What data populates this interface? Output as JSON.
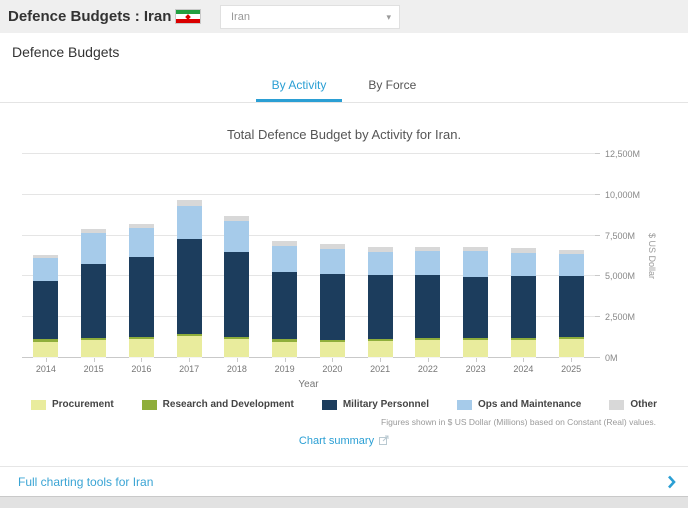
{
  "colors": {
    "accent": "#2b9fd4"
  },
  "header": {
    "title": "Defence Budgets : Iran",
    "country_select": {
      "value": "Iran",
      "caret": "▾"
    }
  },
  "panel": {
    "heading": "Defence Budgets",
    "tabs": [
      {
        "label": "By Activity",
        "active": true
      },
      {
        "label": "By Force",
        "active": false
      }
    ]
  },
  "chart_data": {
    "type": "bar",
    "stacked": true,
    "title": "Total Defence Budget by Activity for Iran.",
    "xlabel": "Year",
    "ylabel": "$ US Dollar",
    "ylim": [
      0,
      12500
    ],
    "yticks": [
      0,
      2500,
      5000,
      7500,
      10000,
      12500
    ],
    "ytick_labels": [
      "0M",
      "2,500M",
      "5,000M",
      "7,500M",
      "10,000M",
      "12,500M"
    ],
    "grid": true,
    "legend_position": "bottom",
    "categories": [
      "2014",
      "2015",
      "2016",
      "2017",
      "2018",
      "2019",
      "2020",
      "2021",
      "2022",
      "2023",
      "2024",
      "2025"
    ],
    "series": [
      {
        "name": "Procurement",
        "color": "#e9ec9d",
        "values": [
          950,
          1020,
          1080,
          1280,
          1120,
          940,
          920,
          980,
          1060,
          1060,
          1050,
          1100
        ]
      },
      {
        "name": "Research and Development",
        "color": "#8fae3b",
        "values": [
          140,
          140,
          140,
          140,
          120,
          140,
          120,
          100,
          100,
          100,
          100,
          100
        ]
      },
      {
        "name": "Military Personnel",
        "color": "#1c3d5d",
        "values": [
          3570,
          4550,
          4900,
          5810,
          5200,
          4140,
          4060,
          3920,
          3840,
          3770,
          3800,
          3750
        ]
      },
      {
        "name": "Ops and Maintenance",
        "color": "#a6cbea",
        "values": [
          1390,
          1880,
          1800,
          2040,
          1920,
          1610,
          1530,
          1450,
          1470,
          1550,
          1430,
          1350
        ]
      },
      {
        "name": "Other",
        "color": "#d8d8d8",
        "values": [
          220,
          260,
          250,
          370,
          310,
          270,
          270,
          290,
          270,
          290,
          280,
          230
        ]
      }
    ]
  },
  "footnote": "Figures shown in $ US Dollar (Millions) based on Constant (Real) values.",
  "chart_summary": {
    "label": "Chart summary"
  },
  "footer": {
    "label": "Full charting tools for Iran"
  }
}
